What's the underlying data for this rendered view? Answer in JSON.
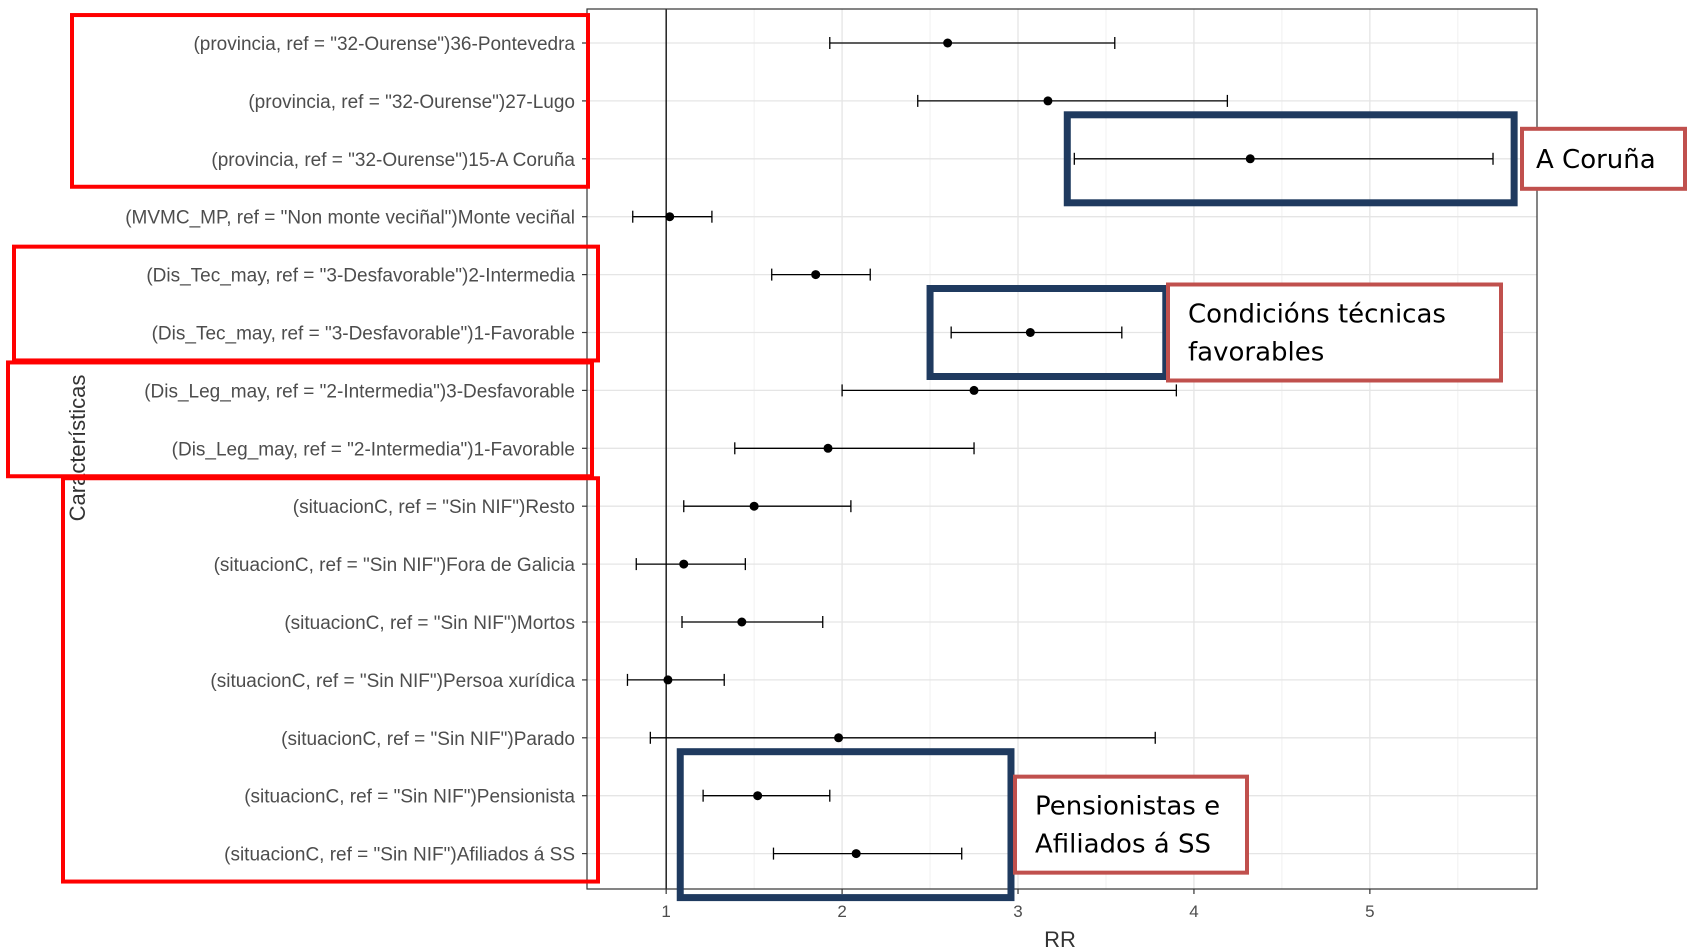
{
  "chart_data": {
    "type": "forest",
    "xlabel": "RR",
    "ylabel": "Características",
    "xticks": [
      1,
      2,
      3,
      4,
      5
    ],
    "xlim": [
      0.55,
      5.95
    ],
    "reference_line": 1,
    "grid": true,
    "rows": [
      {
        "label": "(provincia, ref = \"32-Ourense\")36-Pontevedra",
        "rr": 2.6,
        "lo": 1.93,
        "hi": 3.55
      },
      {
        "label": "(provincia, ref = \"32-Ourense\")27-Lugo",
        "rr": 3.17,
        "lo": 2.43,
        "hi": 4.19
      },
      {
        "label": "(provincia, ref = \"32-Ourense\")15-A Coruña",
        "rr": 4.32,
        "lo": 3.32,
        "hi": 5.7
      },
      {
        "label": "(MVMC_MP, ref = \"Non monte veciñal\")Monte veciñal",
        "rr": 1.02,
        "lo": 0.81,
        "hi": 1.26
      },
      {
        "label": "(Dis_Tec_may, ref = \"3-Desfavorable\")2-Intermedia",
        "rr": 1.85,
        "lo": 1.6,
        "hi": 2.16
      },
      {
        "label": "(Dis_Tec_may, ref = \"3-Desfavorable\")1-Favorable",
        "rr": 3.07,
        "lo": 2.62,
        "hi": 3.59
      },
      {
        "label": "(Dis_Leg_may, ref = \"2-Intermedia\")3-Desfavorable",
        "rr": 2.75,
        "lo": 2.0,
        "hi": 3.9
      },
      {
        "label": "(Dis_Leg_may, ref = \"2-Intermedia\")1-Favorable",
        "rr": 1.92,
        "lo": 1.39,
        "hi": 2.75
      },
      {
        "label": "(situacionC, ref = \"Sin NIF\")Resto",
        "rr": 1.5,
        "lo": 1.1,
        "hi": 2.05
      },
      {
        "label": "(situacionC, ref = \"Sin NIF\")Fora de Galicia",
        "rr": 1.1,
        "lo": 0.83,
        "hi": 1.45
      },
      {
        "label": "(situacionC, ref = \"Sin NIF\")Mortos",
        "rr": 1.43,
        "lo": 1.09,
        "hi": 1.89
      },
      {
        "label": "(situacionC, ref = \"Sin NIF\")Persoa xurídica",
        "rr": 1.01,
        "lo": 0.78,
        "hi": 1.33
      },
      {
        "label": "(situacionC, ref = \"Sin NIF\")Parado",
        "rr": 1.98,
        "lo": 0.91,
        "hi": 3.78
      },
      {
        "label": "(situacionC, ref = \"Sin NIF\")Pensionista",
        "rr": 1.52,
        "lo": 1.21,
        "hi": 1.93
      },
      {
        "label": "(situacionC, ref = \"Sin NIF\")Afiliados á SS",
        "rr": 2.08,
        "lo": 1.61,
        "hi": 2.68
      }
    ]
  },
  "annotations": [
    {
      "text": [
        "A Coruña"
      ],
      "highlight_rows": [
        2
      ],
      "label_color": "#c0504d",
      "box_color": "#1f3a5f"
    },
    {
      "text": [
        "Condicións técnicas",
        "favorables"
      ],
      "highlight_rows": [
        5
      ],
      "label_color": "#c0504d",
      "box_color": "#1f3a5f"
    },
    {
      "text": [
        "Pensionistas e",
        "Afiliados á SS"
      ],
      "highlight_rows": [
        13,
        14
      ],
      "label_color": "#c0504d",
      "box_color": "#1f3a5f"
    }
  ],
  "label_groups": [
    {
      "rows": [
        0,
        2
      ],
      "color": "#ff0000"
    },
    {
      "rows": [
        4,
        5
      ],
      "color": "#ff0000"
    },
    {
      "rows": [
        6,
        7
      ],
      "color": "#ff0000"
    },
    {
      "rows": [
        8,
        14
      ],
      "color": "#ff0000"
    }
  ]
}
